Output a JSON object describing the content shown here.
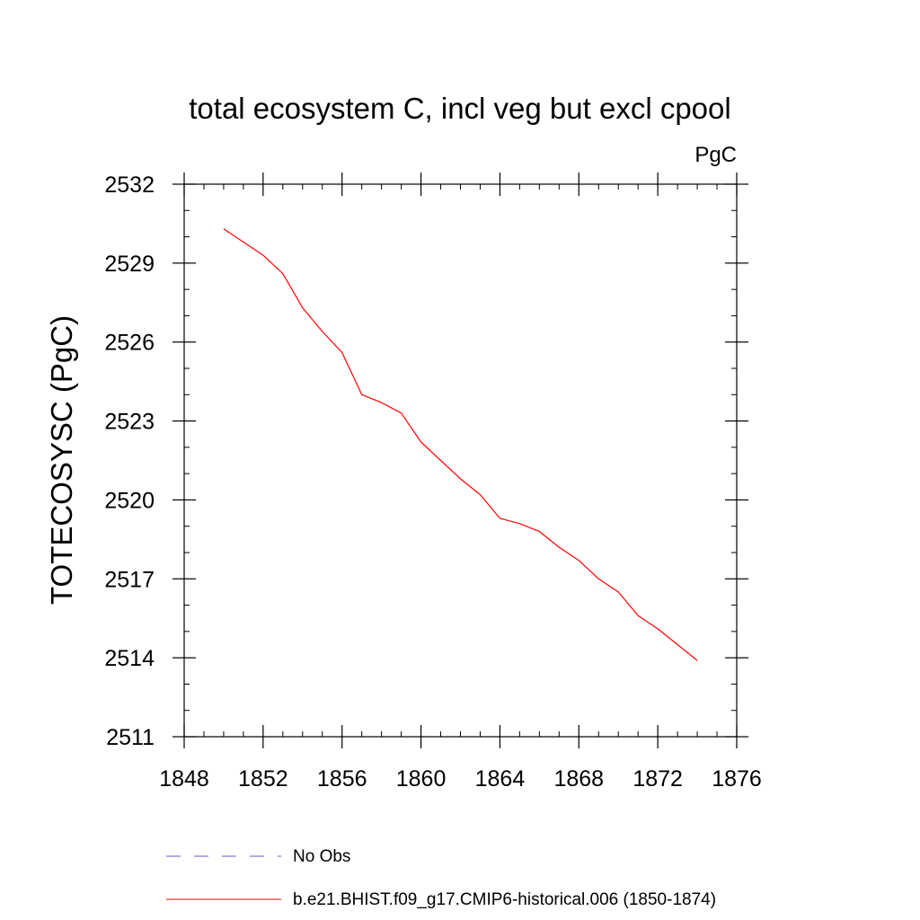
{
  "chart_data": {
    "type": "line",
    "title": "total ecosystem C, incl veg but excl cpool",
    "units_label": "PgC",
    "xlabel": "",
    "ylabel": "TOTECOSYSC  (PgC)",
    "xlim": [
      1848,
      1876
    ],
    "ylim": [
      2511,
      2532
    ],
    "x_ticks": [
      1848,
      1852,
      1856,
      1860,
      1864,
      1868,
      1872,
      1876
    ],
    "y_ticks": [
      2511,
      2514,
      2517,
      2520,
      2523,
      2526,
      2529,
      2532
    ],
    "grid": false,
    "series": [
      {
        "name": "b.e21.BHIST.f09_g17.CMIP6-historical.006 (1850-1874)",
        "color": "#ff0000",
        "style": "solid",
        "x": [
          1850,
          1851,
          1852,
          1853,
          1854,
          1855,
          1856,
          1857,
          1858,
          1859,
          1860,
          1861,
          1862,
          1863,
          1864,
          1865,
          1866,
          1867,
          1868,
          1869,
          1870,
          1871,
          1872,
          1873,
          1874
        ],
        "values": [
          2530.3,
          2529.8,
          2529.3,
          2528.6,
          2527.3,
          2526.4,
          2525.6,
          2524.0,
          2523.7,
          2523.3,
          2522.2,
          2521.5,
          2520.8,
          2520.2,
          2519.3,
          2519.1,
          2518.8,
          2518.2,
          2517.7,
          2517.0,
          2516.5,
          2515.6,
          2515.1,
          2514.5,
          2513.9
        ]
      }
    ],
    "legend": {
      "placement": "bottom-left",
      "entries": [
        {
          "label": "No Obs",
          "color": "#6a5acd",
          "style": "dashed"
        },
        {
          "label": "b.e21.BHIST.f09_g17.CMIP6-historical.006 (1850-1874)",
          "color": "#ff0000",
          "style": "solid"
        }
      ]
    }
  }
}
